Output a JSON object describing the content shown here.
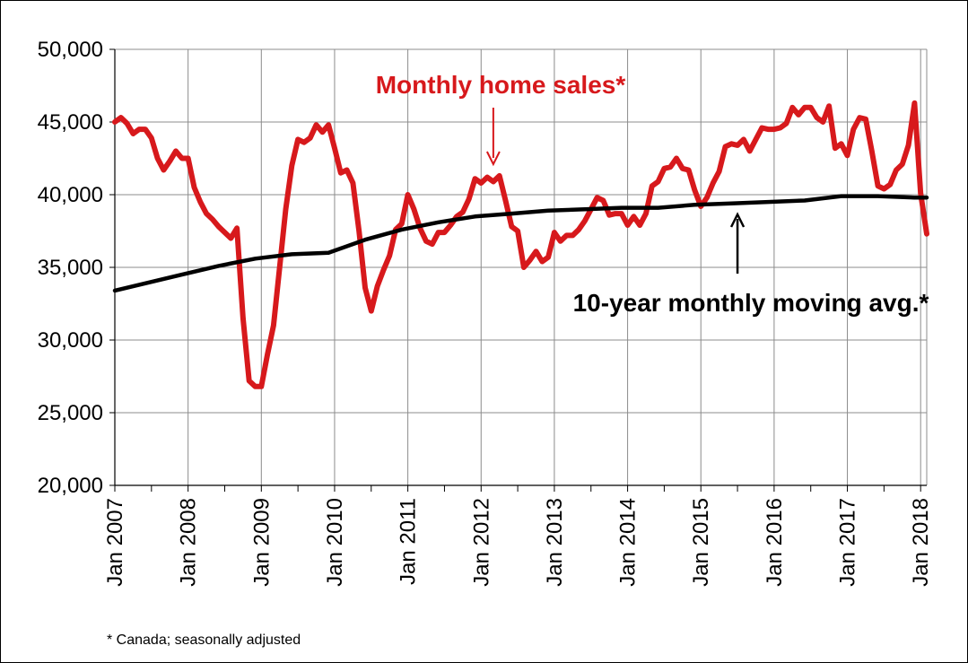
{
  "chart_data": {
    "type": "line",
    "title": "",
    "xlabel": "",
    "ylabel": "",
    "ylim": [
      20000,
      50000
    ],
    "yticks": [
      {
        "value": 20000,
        "label": "20,000"
      },
      {
        "value": 25000,
        "label": "25,000"
      },
      {
        "value": 30000,
        "label": "30,000"
      },
      {
        "value": 35000,
        "label": "35,000"
      },
      {
        "value": 40000,
        "label": "40,000"
      },
      {
        "value": 45000,
        "label": "45,000"
      },
      {
        "value": 50000,
        "label": "50,000"
      }
    ],
    "xlim": [
      "2007-01",
      "2018-02"
    ],
    "xticks": [
      {
        "value": "2007-01",
        "label": "Jan 2007"
      },
      {
        "value": "2008-01",
        "label": "Jan 2008"
      },
      {
        "value": "2009-01",
        "label": "Jan 2009"
      },
      {
        "value": "2010-01",
        "label": "Jan 2010"
      },
      {
        "value": "2011-01",
        "label": "Jan 2011"
      },
      {
        "value": "2012-01",
        "label": "Jan 2012"
      },
      {
        "value": "2013-01",
        "label": "Jan 2013"
      },
      {
        "value": "2014-01",
        "label": "Jan 2014"
      },
      {
        "value": "2015-01",
        "label": "Jan 2015"
      },
      {
        "value": "2016-01",
        "label": "Jan 2016"
      },
      {
        "value": "2017-01",
        "label": "Jan 2017"
      },
      {
        "value": "2018-01",
        "label": "Jan 2018"
      }
    ],
    "grid": true,
    "series": [
      {
        "name": "Monthly home sales*",
        "color": "#d7191c",
        "points": [
          [
            "2007-01",
            45000
          ],
          [
            "2007-02",
            45300
          ],
          [
            "2007-03",
            44900
          ],
          [
            "2007-04",
            44200
          ],
          [
            "2007-05",
            44500
          ],
          [
            "2007-06",
            44500
          ],
          [
            "2007-07",
            43900
          ],
          [
            "2007-08",
            42500
          ],
          [
            "2007-09",
            41700
          ],
          [
            "2007-10",
            42300
          ],
          [
            "2007-11",
            43000
          ],
          [
            "2007-12",
            42500
          ],
          [
            "2008-01",
            42500
          ],
          [
            "2008-02",
            40500
          ],
          [
            "2008-03",
            39500
          ],
          [
            "2008-04",
            38700
          ],
          [
            "2008-05",
            38300
          ],
          [
            "2008-06",
            37800
          ],
          [
            "2008-07",
            37400
          ],
          [
            "2008-08",
            37000
          ],
          [
            "2008-09",
            37700
          ],
          [
            "2008-10",
            31500
          ],
          [
            "2008-11",
            27200
          ],
          [
            "2008-12",
            26800
          ],
          [
            "2009-01",
            26800
          ],
          [
            "2009-02",
            29000
          ],
          [
            "2009-03",
            31000
          ],
          [
            "2009-04",
            35000
          ],
          [
            "2009-05",
            39000
          ],
          [
            "2009-06",
            42000
          ],
          [
            "2009-07",
            43800
          ],
          [
            "2009-08",
            43600
          ],
          [
            "2009-09",
            43900
          ],
          [
            "2009-10",
            44800
          ],
          [
            "2009-11",
            44300
          ],
          [
            "2009-12",
            44800
          ],
          [
            "2010-01",
            43200
          ],
          [
            "2010-02",
            41500
          ],
          [
            "2010-03",
            41700
          ],
          [
            "2010-04",
            40800
          ],
          [
            "2010-05",
            37500
          ],
          [
            "2010-06",
            33600
          ],
          [
            "2010-07",
            32000
          ],
          [
            "2010-08",
            33700
          ],
          [
            "2010-09",
            34800
          ],
          [
            "2010-10",
            35800
          ],
          [
            "2010-11",
            37600
          ],
          [
            "2010-12",
            38000
          ],
          [
            "2011-01",
            40000
          ],
          [
            "2011-02",
            39000
          ],
          [
            "2011-03",
            37700
          ],
          [
            "2011-04",
            36800
          ],
          [
            "2011-05",
            36600
          ],
          [
            "2011-06",
            37400
          ],
          [
            "2011-07",
            37400
          ],
          [
            "2011-08",
            37900
          ],
          [
            "2011-09",
            38500
          ],
          [
            "2011-10",
            38800
          ],
          [
            "2011-11",
            39700
          ],
          [
            "2011-12",
            41100
          ],
          [
            "2012-01",
            40800
          ],
          [
            "2012-02",
            41200
          ],
          [
            "2012-03",
            40900
          ],
          [
            "2012-04",
            41300
          ],
          [
            "2012-05",
            39600
          ],
          [
            "2012-06",
            37800
          ],
          [
            "2012-07",
            37500
          ],
          [
            "2012-08",
            35000
          ],
          [
            "2012-09",
            35500
          ],
          [
            "2012-10",
            36100
          ],
          [
            "2012-11",
            35400
          ],
          [
            "2012-12",
            35700
          ],
          [
            "2013-01",
            37400
          ],
          [
            "2013-02",
            36800
          ],
          [
            "2013-03",
            37200
          ],
          [
            "2013-04",
            37200
          ],
          [
            "2013-05",
            37600
          ],
          [
            "2013-06",
            38200
          ],
          [
            "2013-07",
            39000
          ],
          [
            "2013-08",
            39800
          ],
          [
            "2013-09",
            39600
          ],
          [
            "2013-10",
            38600
          ],
          [
            "2013-11",
            38700
          ],
          [
            "2013-12",
            38700
          ],
          [
            "2014-01",
            37900
          ],
          [
            "2014-02",
            38500
          ],
          [
            "2014-03",
            37900
          ],
          [
            "2014-04",
            38700
          ],
          [
            "2014-05",
            40600
          ],
          [
            "2014-06",
            40900
          ],
          [
            "2014-07",
            41800
          ],
          [
            "2014-08",
            41900
          ],
          [
            "2014-09",
            42500
          ],
          [
            "2014-10",
            41800
          ],
          [
            "2014-11",
            41700
          ],
          [
            "2014-12",
            40300
          ],
          [
            "2015-01",
            39200
          ],
          [
            "2015-02",
            39800
          ],
          [
            "2015-03",
            40800
          ],
          [
            "2015-04",
            41600
          ],
          [
            "2015-05",
            43300
          ],
          [
            "2015-06",
            43500
          ],
          [
            "2015-07",
            43400
          ],
          [
            "2015-08",
            43800
          ],
          [
            "2015-09",
            43000
          ],
          [
            "2015-10",
            43800
          ],
          [
            "2015-11",
            44600
          ],
          [
            "2015-12",
            44500
          ],
          [
            "2016-01",
            44500
          ],
          [
            "2016-02",
            44600
          ],
          [
            "2016-03",
            44900
          ],
          [
            "2016-04",
            46000
          ],
          [
            "2016-05",
            45500
          ],
          [
            "2016-06",
            46000
          ],
          [
            "2016-07",
            46000
          ],
          [
            "2016-08",
            45300
          ],
          [
            "2016-09",
            45000
          ],
          [
            "2016-10",
            46100
          ],
          [
            "2016-11",
            43200
          ],
          [
            "2016-12",
            43500
          ],
          [
            "2017-01",
            42700
          ],
          [
            "2017-02",
            44500
          ],
          [
            "2017-03",
            45300
          ],
          [
            "2017-04",
            45200
          ],
          [
            "2017-05",
            43000
          ],
          [
            "2017-06",
            40600
          ],
          [
            "2017-07",
            40400
          ],
          [
            "2017-08",
            40700
          ],
          [
            "2017-09",
            41700
          ],
          [
            "2017-10",
            42100
          ],
          [
            "2017-11",
            43400
          ],
          [
            "2017-12",
            46300
          ],
          [
            "2018-01",
            40100
          ],
          [
            "2018-02",
            37300
          ]
        ]
      },
      {
        "name": "10-year monthly moving avg.*",
        "color": "#000000",
        "points": [
          [
            "2007-01",
            33400
          ],
          [
            "2007-06",
            33900
          ],
          [
            "2007-12",
            34500
          ],
          [
            "2008-06",
            35100
          ],
          [
            "2008-12",
            35600
          ],
          [
            "2009-06",
            35900
          ],
          [
            "2009-12",
            36000
          ],
          [
            "2010-06",
            36900
          ],
          [
            "2010-12",
            37600
          ],
          [
            "2011-06",
            38100
          ],
          [
            "2011-12",
            38500
          ],
          [
            "2012-06",
            38700
          ],
          [
            "2012-12",
            38900
          ],
          [
            "2013-06",
            39000
          ],
          [
            "2013-12",
            39100
          ],
          [
            "2014-06",
            39100
          ],
          [
            "2014-12",
            39300
          ],
          [
            "2015-06",
            39400
          ],
          [
            "2015-12",
            39500
          ],
          [
            "2016-06",
            39600
          ],
          [
            "2016-12",
            39900
          ],
          [
            "2017-06",
            39900
          ],
          [
            "2017-12",
            39800
          ],
          [
            "2018-02",
            39800
          ]
        ]
      }
    ],
    "annotations": [
      {
        "text": "Monthly home sales*",
        "series": 0,
        "points_to": [
          "2012-03",
          41000
        ]
      },
      {
        "text": "10-year monthly moving avg.*",
        "series": 1,
        "points_to": [
          "2015-07",
          39300
        ]
      }
    ]
  },
  "footnote": "* Canada; seasonally adjusted"
}
